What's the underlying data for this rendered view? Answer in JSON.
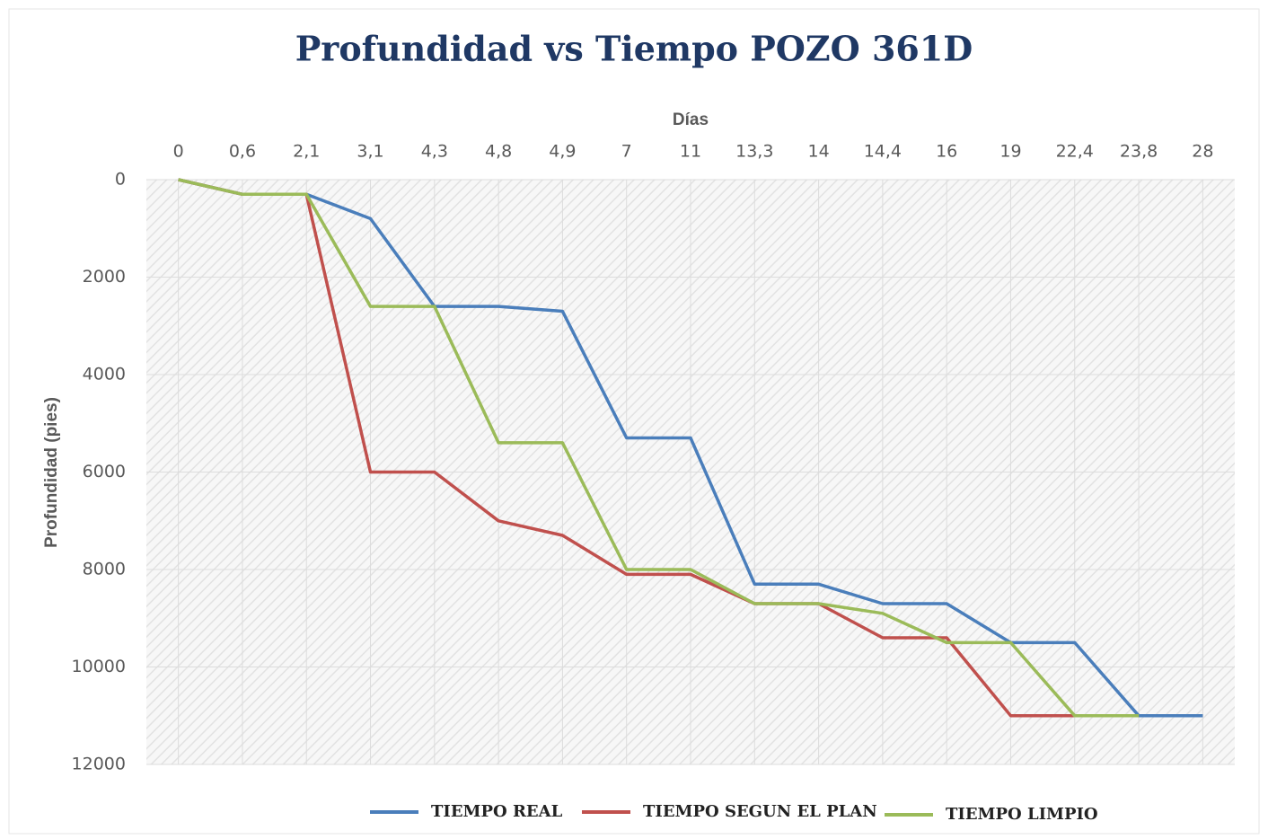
{
  "chart_data": {
    "type": "line",
    "title": "Profundidad vs Tiempo POZO 361D",
    "x_label": "Días",
    "y_label": "Profundidad (pies)",
    "categories": [
      "0",
      "0,6",
      "2,1",
      "3,1",
      "4,3",
      "4,8",
      "4,9",
      "7",
      "11",
      "13,3",
      "14",
      "14,4",
      "16",
      "19",
      "22,4",
      "23,8",
      "28"
    ],
    "ylim": [
      0,
      12000
    ],
    "yticks": [
      0,
      2000,
      4000,
      6000,
      8000,
      10000,
      12000
    ],
    "y_inverted": true,
    "grid": true,
    "legend": "bottom",
    "series": [
      {
        "name": "TIEMPO REAL",
        "color": "#4a7ebb",
        "values": [
          0,
          300,
          300,
          800,
          2600,
          2600,
          2700,
          5300,
          5300,
          8300,
          8300,
          8700,
          8700,
          9500,
          9500,
          11000,
          11000
        ]
      },
      {
        "name": "TIEMPO SEGUN EL PLAN",
        "color": "#c0504d",
        "values": [
          0,
          300,
          300,
          6000,
          6000,
          7000,
          7300,
          8100,
          8100,
          8700,
          8700,
          9400,
          9400,
          11000,
          11000,
          null,
          null
        ]
      },
      {
        "name": "TIEMPO LIMPIO",
        "color": "#9bbb59",
        "values": [
          0,
          300,
          300,
          2600,
          2600,
          5400,
          5400,
          8000,
          8000,
          8700,
          8700,
          8900,
          9500,
          9500,
          11000,
          11000,
          null
        ]
      }
    ]
  }
}
